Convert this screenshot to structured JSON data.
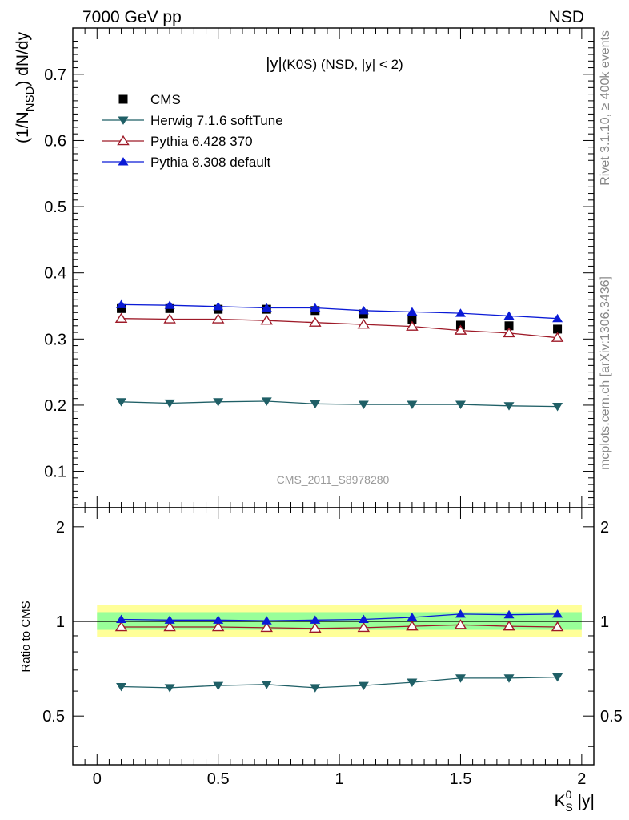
{
  "header": {
    "left": "7000 GeV pp",
    "right": "NSD"
  },
  "side_texts": {
    "rivet": "Rivet 3.1.10, ≥ 400k events",
    "mcplots": "mcplots.cern.ch [arXiv:1306.3436]"
  },
  "watermark": "CMS_2011_S8978280",
  "chart_data": [
    {
      "type": "scatter",
      "panel": "main",
      "title": "|y|(K0S) (NSD, |y| < 2)",
      "ylabel": "(1/N_NSD) dN/dy",
      "xlim": [
        -0.1,
        2.05
      ],
      "ylim": [
        0.045,
        0.77
      ],
      "yticks": [
        0.1,
        0.2,
        0.3,
        0.4,
        0.5,
        0.6,
        0.7
      ],
      "legend_placement": "top-left",
      "x": [
        0.1,
        0.3,
        0.5,
        0.7,
        0.9,
        1.1,
        1.3,
        1.5,
        1.7,
        1.9
      ],
      "series": [
        {
          "name": "CMS",
          "marker": "square",
          "line": false,
          "color": "#000000",
          "values": [
            0.346,
            0.346,
            0.345,
            0.345,
            0.343,
            0.338,
            0.33,
            0.321,
            0.32,
            0.315
          ]
        },
        {
          "name": "Herwig 7.1.6 softTune",
          "marker": "triangle-down",
          "line": true,
          "color": "#1f5f66",
          "values": [
            0.205,
            0.203,
            0.205,
            0.206,
            0.202,
            0.201,
            0.201,
            0.201,
            0.199,
            0.198
          ]
        },
        {
          "name": "Pythia 6.428 370",
          "marker": "triangle-up-open",
          "line": true,
          "color": "#9e1a28",
          "values": [
            0.331,
            0.33,
            0.33,
            0.328,
            0.325,
            0.322,
            0.319,
            0.313,
            0.309,
            0.302
          ]
        },
        {
          "name": "Pythia 8.308 default",
          "marker": "triangle-up",
          "line": true,
          "color": "#0a1ad6",
          "values": [
            0.352,
            0.351,
            0.349,
            0.347,
            0.347,
            0.343,
            0.341,
            0.339,
            0.335,
            0.331
          ]
        }
      ]
    },
    {
      "type": "line",
      "panel": "ratio",
      "xlabel": "K_S^0 |y|",
      "ylabel": "Ratio to CMS",
      "xlim": [
        -0.1,
        2.05
      ],
      "ylim": [
        0.35,
        2.3
      ],
      "yticks": [
        0.5,
        1,
        2
      ],
      "xticks": [
        0,
        0.5,
        1,
        1.5,
        2
      ],
      "bands": [
        {
          "name": "outer",
          "low": 0.89,
          "high": 1.13,
          "color": "#ffff99"
        },
        {
          "name": "inner",
          "low": 0.94,
          "high": 1.07,
          "color": "#99ff99"
        }
      ],
      "reference": 1,
      "x": [
        0.1,
        0.3,
        0.5,
        0.7,
        0.9,
        1.1,
        1.3,
        1.5,
        1.7,
        1.9
      ],
      "series": [
        {
          "name": "Herwig 7.1.6 softTune",
          "marker": "triangle-down",
          "color": "#1f5f66",
          "values": [
            0.62,
            0.615,
            0.625,
            0.63,
            0.615,
            0.625,
            0.64,
            0.66,
            0.66,
            0.665
          ]
        },
        {
          "name": "Pythia 6.428 370",
          "marker": "triangle-up-open",
          "color": "#9e1a28",
          "values": [
            0.96,
            0.96,
            0.96,
            0.955,
            0.95,
            0.955,
            0.965,
            0.975,
            0.965,
            0.96
          ]
        },
        {
          "name": "Pythia 8.308 default",
          "marker": "triangle-up",
          "color": "#0a1ad6",
          "values": [
            1.015,
            1.01,
            1.01,
            1.005,
            1.01,
            1.015,
            1.03,
            1.055,
            1.05,
            1.055
          ]
        }
      ]
    }
  ]
}
